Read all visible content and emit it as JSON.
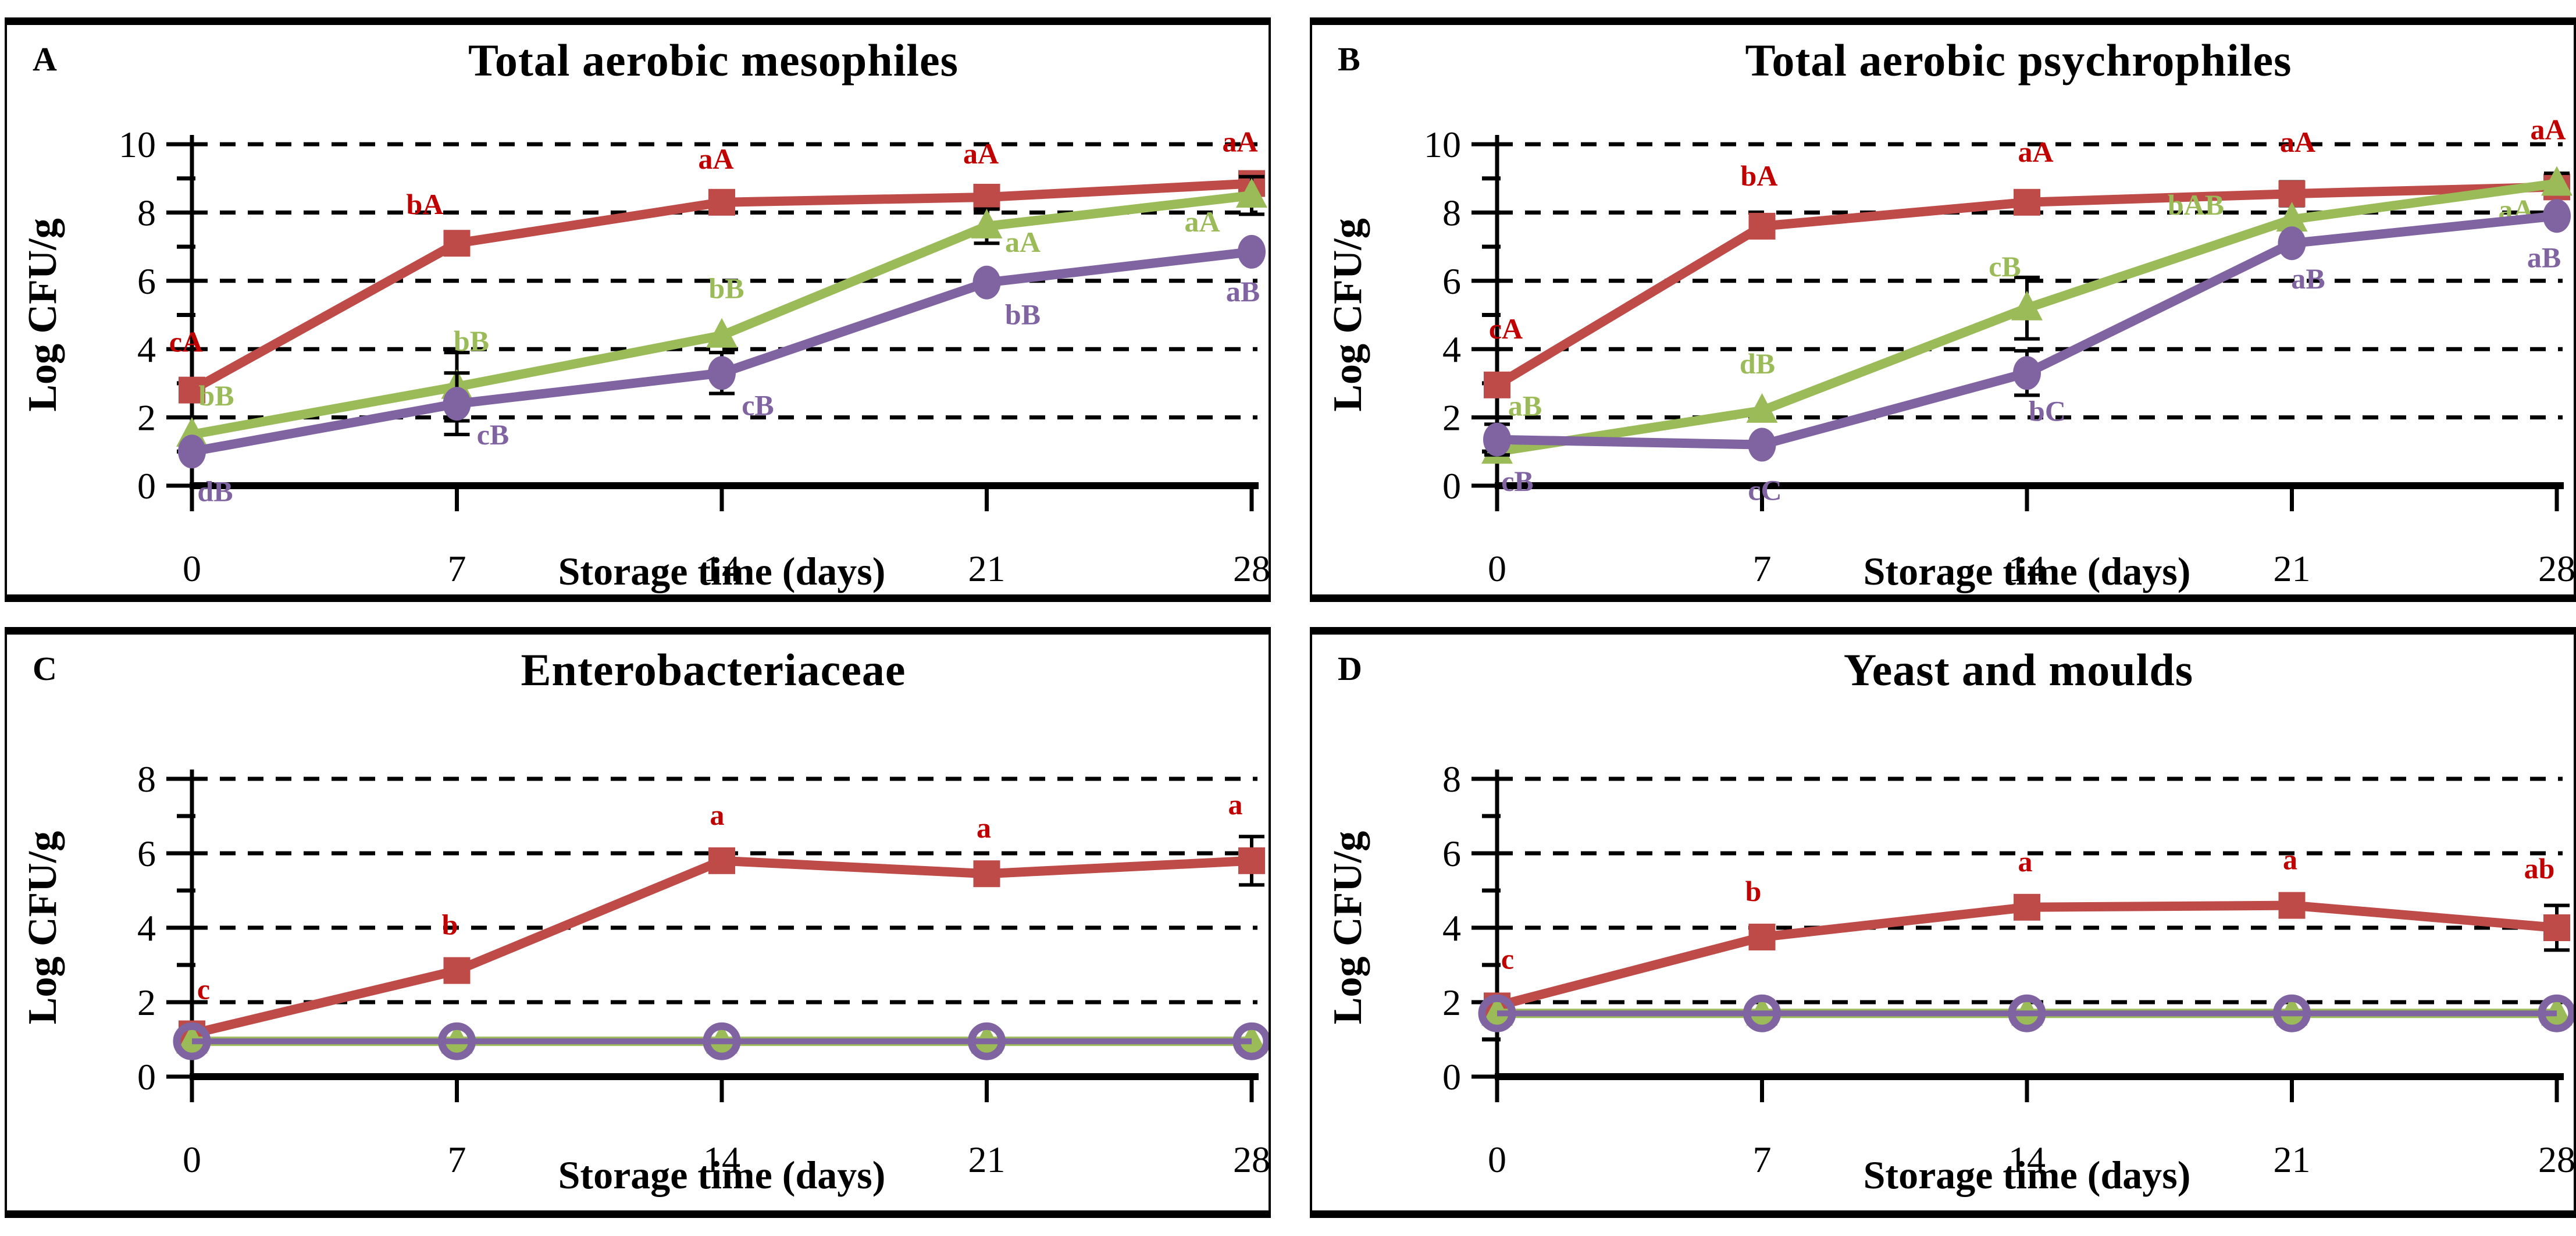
{
  "figure_note": "Four-panel line chart figure of microbial counts during storage",
  "chart_data": [
    {
      "panel": "A",
      "type": "line",
      "title": "Total aerobic mesophiles",
      "xlabel": "Storage time (days)",
      "ylabel": "Log CFU/g",
      "x": [
        0,
        7,
        14,
        21,
        28
      ],
      "xticks": [
        0,
        7,
        14,
        21,
        28
      ],
      "xlim": [
        0,
        28
      ],
      "ylim": [
        0,
        10
      ],
      "yticks": [
        0,
        2,
        4,
        6,
        8,
        10
      ],
      "ytick_step": 2,
      "grid": "dashed-horizontal",
      "legend": "none",
      "series": [
        {
          "name": "red-square-series",
          "marker": "square",
          "color": "#BE4B48",
          "label_color": "#C00000",
          "values": [
            2.8,
            7.1,
            8.3,
            8.45,
            8.85
          ],
          "errors": [
            0,
            0,
            0,
            0,
            0
          ],
          "sig_labels": [
            "cA",
            "bA",
            "aA",
            "aA",
            "aA"
          ],
          "label_offsets": [
            [
              -10,
              -66
            ],
            [
              -55,
              -50
            ],
            [
              -10,
              -58
            ],
            [
              -10,
              -58
            ],
            [
              -20,
              -55
            ]
          ]
        },
        {
          "name": "green-triangle-series",
          "marker": "triangle",
          "color": "#9BBB59",
          "label_color": "#9BBB59",
          "values": [
            1.5,
            2.9,
            4.4,
            7.6,
            8.5
          ],
          "errors": [
            0,
            1.0,
            0,
            0.5,
            0.55
          ],
          "sig_labels": [
            "bB",
            "bB",
            "bB",
            "aA",
            "aA"
          ],
          "label_offsets": [
            [
              42,
              -50
            ],
            [
              25,
              -62
            ],
            [
              8,
              -64
            ],
            [
              62,
              44
            ],
            [
              -85,
              62
            ]
          ]
        },
        {
          "name": "purple-circle-series",
          "marker": "circle",
          "color": "#8064A2",
          "label_color": "#8064A2",
          "values": [
            1.0,
            2.4,
            3.3,
            5.95,
            6.85
          ],
          "errors": [
            0,
            0.9,
            0.6,
            0,
            0
          ],
          "sig_labels": [
            "dB",
            "cB",
            "cB",
            "bB",
            "aB"
          ],
          "label_offsets": [
            [
              40,
              85
            ],
            [
              62,
              70
            ],
            [
              62,
              72
            ],
            [
              62,
              72
            ],
            [
              -15,
              85
            ]
          ]
        }
      ]
    },
    {
      "panel": "B",
      "type": "line",
      "title": "Total aerobic psychrophiles",
      "xlabel": "Storage time (days)",
      "ylabel": "Log CFU/g",
      "x": [
        0,
        7,
        14,
        21,
        28
      ],
      "xticks": [
        0,
        7,
        14,
        21,
        28
      ],
      "xlim": [
        0,
        28
      ],
      "ylim": [
        0,
        10
      ],
      "yticks": [
        0,
        2,
        4,
        6,
        8,
        10
      ],
      "ytick_step": 2,
      "grid": "dashed-horizontal",
      "legend": "none",
      "series": [
        {
          "name": "red-square-series",
          "marker": "square",
          "color": "#BE4B48",
          "label_color": "#C00000",
          "values": [
            2.95,
            7.6,
            8.3,
            8.55,
            8.75
          ],
          "errors": [
            0,
            0.25,
            0,
            0.35,
            0.2
          ],
          "sig_labels": [
            "cA",
            "bA",
            "aA",
            "aA",
            "aA"
          ],
          "label_offsets": [
            [
              15,
              -80
            ],
            [
              -5,
              -70
            ],
            [
              15,
              -70
            ],
            [
              10,
              -72
            ],
            [
              -15,
              -82
            ]
          ]
        },
        {
          "name": "green-triangle-series",
          "marker": "triangle",
          "color": "#9BBB59",
          "label_color": "#9BBB59",
          "values": [
            1.0,
            2.2,
            5.2,
            7.8,
            8.85
          ],
          "errors": [
            0,
            0,
            0.9,
            0,
            0.3
          ],
          "sig_labels": [
            "aB",
            "dB",
            "cB",
            "bAB",
            "aA"
          ],
          "label_offsets": [
            [
              48,
              -62
            ],
            [
              -8,
              -64
            ],
            [
              -38,
              -55
            ],
            [
              -165,
              -8
            ],
            [
              -70,
              62
            ]
          ]
        },
        {
          "name": "purple-circle-series",
          "marker": "circle",
          "color": "#8064A2",
          "label_color": "#8064A2",
          "values": [
            1.35,
            1.2,
            3.3,
            7.1,
            7.9
          ],
          "errors": [
            0.45,
            0,
            0.65,
            0,
            0
          ],
          "sig_labels": [
            "cB",
            "cC",
            "bC",
            "aB",
            "aB"
          ],
          "label_offsets": [
            [
              35,
              88
            ],
            [
              5,
              95
            ],
            [
              35,
              82
            ],
            [
              28,
              78
            ],
            [
              -22,
              88
            ]
          ]
        }
      ]
    },
    {
      "panel": "C",
      "type": "line",
      "title": "Enterobacteriaceae",
      "xlabel": "Storage time (days)",
      "ylabel": "Log CFU/g",
      "x": [
        0,
        7,
        14,
        21,
        28
      ],
      "xticks": [
        0,
        7,
        14,
        21,
        28
      ],
      "xlim": [
        0,
        28
      ],
      "ylim": [
        0,
        8
      ],
      "yticks": [
        0,
        2,
        4,
        6,
        8
      ],
      "ytick_step": 2,
      "grid": "dashed-horizontal",
      "legend": "none",
      "series": [
        {
          "name": "red-square-series",
          "marker": "square",
          "color": "#BE4B48",
          "label_color": "#C00000",
          "values": [
            1.15,
            2.85,
            5.8,
            5.45,
            5.8
          ],
          "errors": [
            0,
            0.2,
            0,
            0,
            0.65
          ],
          "sig_labels": [
            "c",
            "b",
            "a",
            "a",
            "a"
          ],
          "label_offsets": [
            [
              20,
              -60
            ],
            [
              -12,
              -62
            ],
            [
              -8,
              -62
            ],
            [
              -5,
              -62
            ],
            [
              -28,
              -80
            ]
          ]
        },
        {
          "name": "green-triangle-series",
          "marker": "triangle",
          "color": "#9BBB59",
          "label_color": "#9BBB59",
          "values": [
            0.95,
            0.95,
            0.95,
            0.95,
            0.95
          ],
          "errors": [
            0,
            0,
            0,
            0,
            0
          ],
          "sig_labels": [
            "",
            "",
            "",
            "",
            ""
          ],
          "label_offsets": [
            [
              0,
              0
            ],
            [
              0,
              0
            ],
            [
              0,
              0
            ],
            [
              0,
              0
            ],
            [
              0,
              0
            ]
          ]
        },
        {
          "name": "purple-ring-series",
          "marker": "ring",
          "color": "#8064A2",
          "label_color": "#8064A2",
          "values": [
            0.95,
            0.95,
            0.95,
            0.95,
            0.95
          ],
          "errors": [
            0,
            0,
            0,
            0,
            0
          ],
          "sig_labels": [
            "",
            "",
            "",
            "",
            ""
          ],
          "label_offsets": [
            [
              0,
              0
            ],
            [
              0,
              0
            ],
            [
              0,
              0
            ],
            [
              0,
              0
            ],
            [
              0,
              0
            ]
          ]
        }
      ]
    },
    {
      "panel": "D",
      "type": "line",
      "title": "Yeast and moulds",
      "xlabel": "Storage time (days)",
      "ylabel": "Log CFU/g",
      "x": [
        0,
        7,
        14,
        21,
        28
      ],
      "xticks": [
        0,
        7,
        14,
        21,
        28
      ],
      "xlim": [
        0,
        28
      ],
      "ylim": [
        0,
        8
      ],
      "yticks": [
        0,
        2,
        4,
        6,
        8
      ],
      "ytick_step": 2,
      "grid": "dashed-horizontal",
      "legend": "none",
      "series": [
        {
          "name": "red-square-series",
          "marker": "square",
          "color": "#BE4B48",
          "label_color": "#C00000",
          "values": [
            1.9,
            3.75,
            4.55,
            4.6,
            4.0
          ],
          "errors": [
            0,
            0.2,
            0.15,
            0,
            0.6
          ],
          "sig_labels": [
            "c",
            "b",
            "a",
            "a",
            "ab"
          ],
          "label_offsets": [
            [
              18,
              -64
            ],
            [
              -15,
              -62
            ],
            [
              -3,
              -62
            ],
            [
              -3,
              -62
            ],
            [
              -30,
              -85
            ]
          ]
        },
        {
          "name": "green-triangle-series",
          "marker": "triangle",
          "color": "#9BBB59",
          "label_color": "#9BBB59",
          "values": [
            1.7,
            1.7,
            1.7,
            1.7,
            1.7
          ],
          "errors": [
            0,
            0,
            0,
            0,
            0
          ],
          "sig_labels": [
            "",
            "",
            "",
            "",
            ""
          ],
          "label_offsets": [
            [
              0,
              0
            ],
            [
              0,
              0
            ],
            [
              0,
              0
            ],
            [
              0,
              0
            ],
            [
              0,
              0
            ]
          ]
        },
        {
          "name": "purple-ring-series",
          "marker": "ring",
          "color": "#8064A2",
          "label_color": "#8064A2",
          "values": [
            1.7,
            1.7,
            1.7,
            1.7,
            1.7
          ],
          "errors": [
            0,
            0,
            0,
            0,
            0
          ],
          "sig_labels": [
            "",
            "",
            "",
            "",
            ""
          ],
          "label_offsets": [
            [
              0,
              0
            ],
            [
              0,
              0
            ],
            [
              0,
              0
            ],
            [
              0,
              0
            ],
            [
              0,
              0
            ]
          ]
        }
      ]
    }
  ]
}
